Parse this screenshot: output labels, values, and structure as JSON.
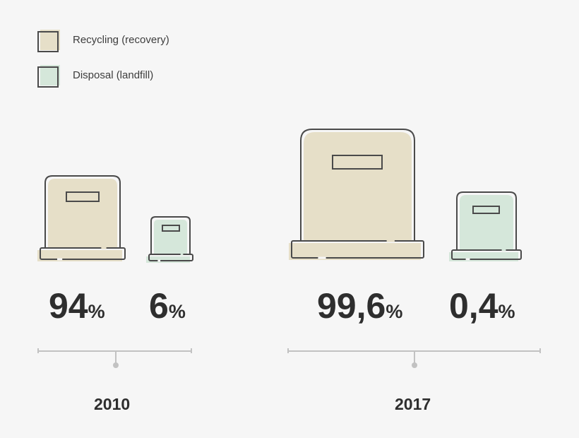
{
  "colors": {
    "recycling": "#e6dfc8",
    "disposal": "#d5e7da",
    "outline": "#4a4a4a",
    "axis": "#c2c2c2",
    "text": "#2e2e2e"
  },
  "legend": [
    {
      "label": "Recycling (recovery)",
      "color": "#e6dfc8"
    },
    {
      "label": "Disposal (landfill)",
      "color": "#d5e7da"
    }
  ],
  "chart_data": {
    "type": "bar",
    "title": "",
    "categories": [
      "2010",
      "2017"
    ],
    "series": [
      {
        "name": "Recycling (recovery)",
        "values": [
          "94",
          "99,6"
        ],
        "unit": "%"
      },
      {
        "name": "Disposal (landfill)",
        "values": [
          "6",
          "0,4"
        ],
        "unit": "%"
      }
    ],
    "legend_position": "top-left",
    "grid": false
  }
}
